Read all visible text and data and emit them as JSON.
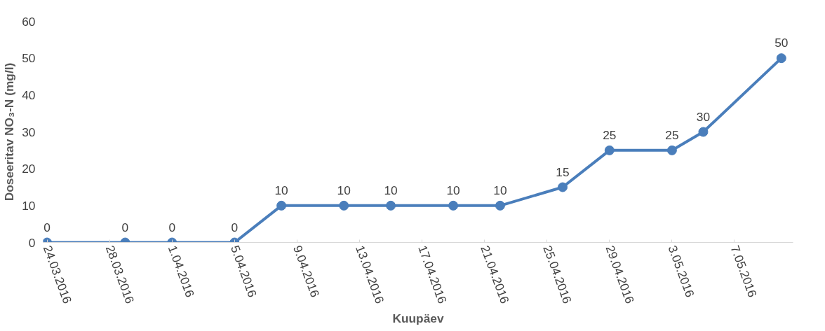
{
  "chart_data": {
    "type": "line",
    "xlabel": "Kuupäev",
    "ylabel": "Doseeritav NO₃-N (mg/l)",
    "x": [
      "2016-03-24",
      "2016-03-29",
      "2016-04-01",
      "2016-04-05",
      "2016-04-08",
      "2016-04-12",
      "2016-04-15",
      "2016-04-19",
      "2016-04-22",
      "2016-04-26",
      "2016-04-29",
      "2016-05-03",
      "2016-05-05",
      "2016-05-10"
    ],
    "series": [
      {
        "color": "#4a7ebb",
        "values": [
          0,
          0,
          0,
          0,
          10,
          10,
          10,
          10,
          10,
          15,
          25,
          25,
          30,
          50
        ]
      }
    ],
    "xlim": [
      "2016-03-23T18:00",
      "2016-05-10T18:00"
    ],
    "xticks": [
      {
        "value": "2016-03-24",
        "label": "24.03.2016"
      },
      {
        "value": "2016-03-28",
        "label": "28.03.2016"
      },
      {
        "value": "2016-04-01",
        "label": "1.04.2016"
      },
      {
        "value": "2016-04-05",
        "label": "5.04.2016"
      },
      {
        "value": "2016-04-09",
        "label": "9.04.2016"
      },
      {
        "value": "2016-04-13",
        "label": "13.04.2016"
      },
      {
        "value": "2016-04-17",
        "label": "17.04.2016"
      },
      {
        "value": "2016-04-21",
        "label": "21.04.2016"
      },
      {
        "value": "2016-04-25",
        "label": "25.04.2016"
      },
      {
        "value": "2016-04-29",
        "label": "29.04.2016"
      },
      {
        "value": "2016-05-03",
        "label": "3.05.2016"
      },
      {
        "value": "2016-05-07",
        "label": "7.05.2016"
      }
    ],
    "ylim": [
      0,
      60
    ],
    "yticks": [
      0,
      10,
      20,
      30,
      40,
      50,
      60
    ],
    "data_labels": true,
    "grid": false,
    "marker": "circle",
    "line_style": "solid"
  }
}
